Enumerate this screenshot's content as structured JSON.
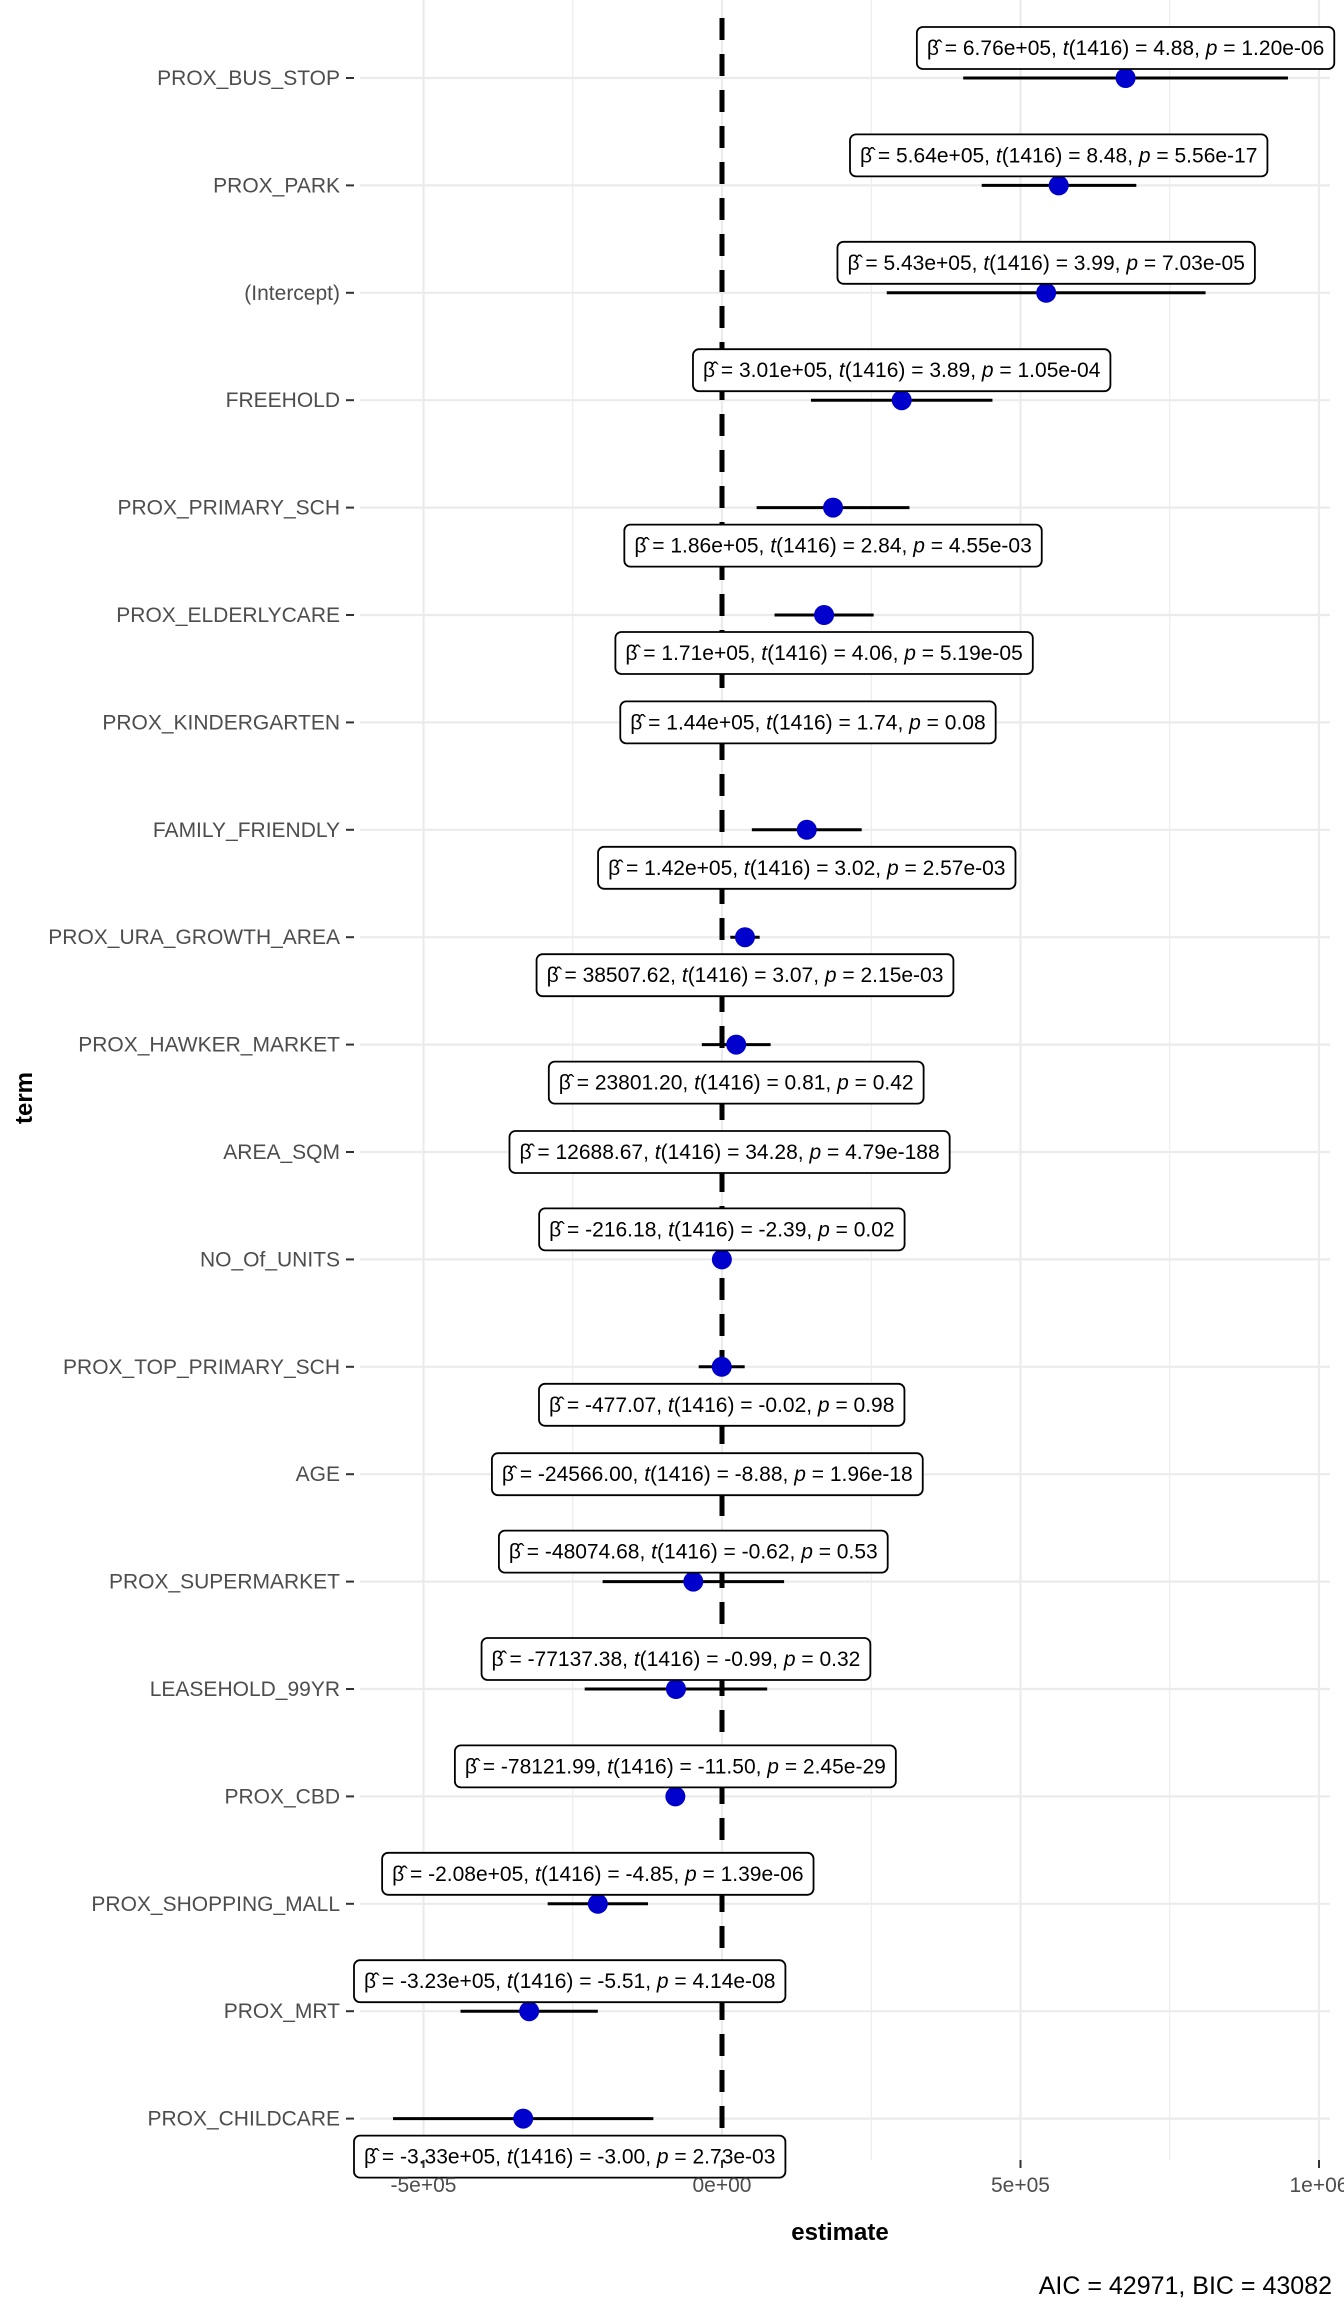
{
  "chart_data": {
    "type": "scatter",
    "subtype": "coefficient-plot",
    "xlabel": "estimate",
    "ylabel": "term",
    "xlim": [
      -620000.0,
      1000000.0
    ],
    "x_ticks": [
      {
        "value": -500000,
        "label": "-5e+05"
      },
      {
        "value": 0,
        "label": "0e+00"
      },
      {
        "value": 500000,
        "label": "5e+05"
      },
      {
        "value": 1000000,
        "label": "1e+06"
      }
    ],
    "reference_line": 0,
    "grid": true,
    "point_color": "#0000cc",
    "caption": "AIC = 42971, BIC = 43082",
    "terms": [
      {
        "term": "PROX_BUS_STOP",
        "estimate": 676000,
        "ci": [
          404000,
          948000
        ],
        "b": "6.76e+05",
        "df": "1416",
        "t": "4.88",
        "p": "1.20e-06",
        "label_pos": "above"
      },
      {
        "term": "PROX_PARK",
        "estimate": 564000,
        "ci": [
          435000,
          694000
        ],
        "b": "5.64e+05",
        "df": "1416",
        "t": "8.48",
        "p": "5.56e-17",
        "label_pos": "above"
      },
      {
        "term": "(Intercept)",
        "estimate": 543000,
        "ci": [
          276000,
          810000
        ],
        "b": "5.43e+05",
        "df": "1416",
        "t": "3.99",
        "p": "7.03e-05",
        "label_pos": "above"
      },
      {
        "term": "FREEHOLD",
        "estimate": 301000,
        "ci": [
          149000,
          453000
        ],
        "b": "3.01e+05",
        "df": "1416",
        "t": "3.89",
        "p": "1.05e-04",
        "label_pos": "above"
      },
      {
        "term": "PROX_PRIMARY_SCH",
        "estimate": 186000,
        "ci": [
          58000,
          314000
        ],
        "b": "1.86e+05",
        "df": "1416",
        "t": "2.84",
        "p": "4.55e-03",
        "label_pos": "below"
      },
      {
        "term": "PROX_ELDERLYCARE",
        "estimate": 171000,
        "ci": [
          88000,
          254000
        ],
        "b": "1.71e+05",
        "df": "1416",
        "t": "4.06",
        "p": "5.19e-05",
        "label_pos": "below"
      },
      {
        "term": "PROX_KINDERGARTEN",
        "estimate": 144000,
        "ci": [
          -18000,
          306000
        ],
        "b": "1.44e+05",
        "df": "1416",
        "t": "1.74",
        "p": "0.08",
        "label_pos": "center"
      },
      {
        "term": "FAMILY_FRIENDLY",
        "estimate": 142000,
        "ci": [
          50000,
          234000
        ],
        "b": "1.42e+05",
        "df": "1416",
        "t": "3.02",
        "p": "2.57e-03",
        "label_pos": "below"
      },
      {
        "term": "PROX_URA_GROWTH_AREA",
        "estimate": 38507.62,
        "ci": [
          13900,
          63100
        ],
        "b": "38507.62",
        "df": "1416",
        "t": "3.07",
        "p": "2.15e-03",
        "label_pos": "below"
      },
      {
        "term": "PROX_HAWKER_MARKET",
        "estimate": 23801.2,
        "ci": [
          -33800,
          81400
        ],
        "b": "23801.20",
        "df": "1416",
        "t": "0.81",
        "p": "0.42",
        "label_pos": "below"
      },
      {
        "term": "AREA_SQM",
        "estimate": 12688.67,
        "ci": [
          11960,
          13410
        ],
        "b": "12688.67",
        "df": "1416",
        "t": "34.28",
        "p": "4.79e-188",
        "label_pos": "center"
      },
      {
        "term": "NO_Of_UNITS",
        "estimate": -216.18,
        "ci": [
          -393,
          -39
        ],
        "b": "-216.18",
        "df": "1416",
        "t": "-2.39",
        "p": "0.02",
        "label_pos": "above"
      },
      {
        "term": "PROX_TOP_PRIMARY_SCH",
        "estimate": -477.07,
        "ci": [
          -39000,
          38000
        ],
        "b": "-477.07",
        "df": "1416",
        "t": "-0.02",
        "p": "0.98",
        "label_pos": "below"
      },
      {
        "term": "AGE",
        "estimate": -24566,
        "ci": [
          -30000,
          -19100
        ],
        "b": "-24566.00",
        "df": "1416",
        "t": "-8.88",
        "p": "1.96e-18",
        "label_pos": "center"
      },
      {
        "term": "PROX_SUPERMARKET",
        "estimate": -48074.68,
        "ci": [
          -200000,
          104000
        ],
        "b": "-48074.68",
        "df": "1416",
        "t": "-0.62",
        "p": "0.53",
        "label_pos": "above"
      },
      {
        "term": "LEASEHOLD_99YR",
        "estimate": -77137.38,
        "ci": [
          -230000,
          75700
        ],
        "b": "-77137.38",
        "df": "1416",
        "t": "-0.99",
        "p": "0.32",
        "label_pos": "above"
      },
      {
        "term": "PROX_CBD",
        "estimate": -78121.99,
        "ci": [
          -91500,
          -64800
        ],
        "b": "-78121.99",
        "df": "1416",
        "t": "-11.50",
        "p": "2.45e-29",
        "label_pos": "above"
      },
      {
        "term": "PROX_SHOPPING_MALL",
        "estimate": -208000,
        "ci": [
          -292000,
          -124000
        ],
        "b": "-2.08e+05",
        "df": "1416",
        "t": "-4.85",
        "p": "1.39e-06",
        "label_pos": "above"
      },
      {
        "term": "PROX_MRT",
        "estimate": -323000,
        "ci": [
          -438000,
          -208000
        ],
        "b": "-3.23e+05",
        "df": "1416",
        "t": "-5.51",
        "p": "4.14e-08",
        "label_pos": "above"
      },
      {
        "term": "PROX_CHILDCARE",
        "estimate": -333000,
        "ci": [
          -551000,
          -115000
        ],
        "b": "-3.33e+05",
        "df": "1416",
        "t": "-3.00",
        "p": "2.73e-03",
        "label_pos": "below"
      }
    ]
  }
}
